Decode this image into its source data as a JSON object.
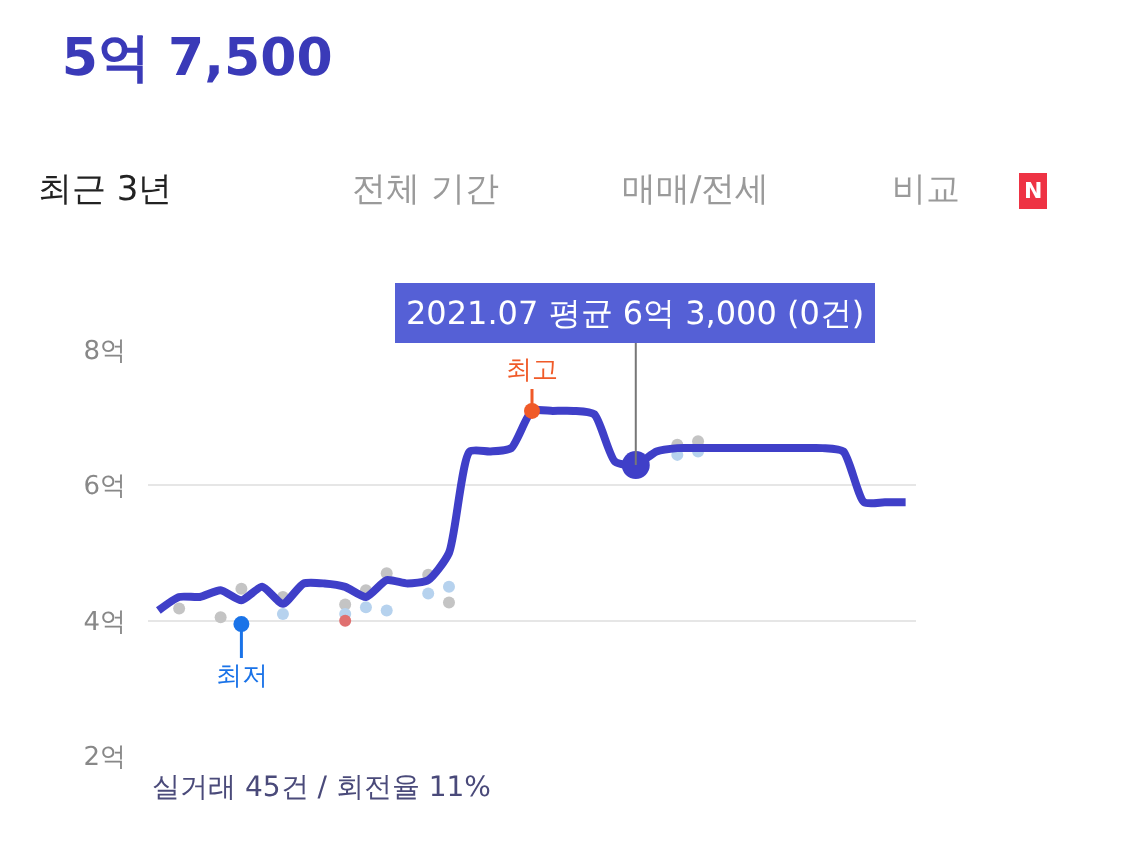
{
  "chart_data": {
    "type": "line",
    "title": "5억 7,500",
    "annotations": [
      "최근 3년",
      "전체 기간",
      "매매/전세",
      "비교",
      "N",
      "실거래 45건 / 회전율 11%"
    ],
    "categories": [
      null,
      null,
      null,
      null,
      null,
      null,
      null,
      null,
      null,
      null,
      null,
      null,
      null,
      null,
      null,
      null,
      null,
      null,
      null,
      null,
      null,
      null,
      null,
      null,
      null,
      null,
      null,
      null,
      null,
      null,
      null,
      null,
      null,
      null,
      null,
      null,
      null
    ],
    "series": [
      {
        "type": "scatter",
        "color": "#c4c4c4",
        "values": [
          null,
          4.18,
          null,
          4.05,
          4.47,
          null,
          4.35,
          null,
          null,
          4.24,
          4.45,
          4.7,
          null,
          4.68,
          4.27,
          null,
          null,
          null,
          null,
          null,
          null,
          null,
          null,
          null,
          null,
          6.6,
          6.65,
          null,
          null,
          null,
          null,
          null,
          null,
          null,
          null,
          null,
          null
        ]
      },
      {
        "type": "scatter",
        "color": "#b6d2ee",
        "values": [
          null,
          null,
          null,
          null,
          null,
          null,
          4.1,
          null,
          null,
          4.1,
          4.2,
          4.15,
          null,
          4.4,
          4.5,
          null,
          null,
          null,
          null,
          null,
          null,
          null,
          null,
          null,
          null,
          6.45,
          6.5,
          null,
          null,
          null,
          null,
          null,
          null,
          null,
          null,
          null,
          null
        ]
      },
      {
        "type": "scatter",
        "color": "#e07070",
        "values": [
          null,
          null,
          null,
          null,
          null,
          null,
          null,
          null,
          null,
          4.0,
          null,
          null,
          null,
          null,
          null,
          null,
          null,
          null,
          null,
          null,
          null,
          null,
          null,
          null,
          null,
          null,
          null,
          null,
          null,
          null,
          null,
          null,
          null,
          null,
          null,
          null,
          null
        ]
      },
      {
        "color": "#3f3fc8",
        "values": [
          4.15,
          4.35,
          4.35,
          4.45,
          4.3,
          4.5,
          4.25,
          4.55,
          4.55,
          4.5,
          4.35,
          4.6,
          4.55,
          4.6,
          5.0,
          6.5,
          6.5,
          6.55,
          7.1,
          7.1,
          7.1,
          7.05,
          6.35,
          6.3,
          6.5,
          6.55,
          6.55,
          6.55,
          6.55,
          6.55,
          6.55,
          6.55,
          6.55,
          6.5,
          5.75,
          5.75,
          5.75
        ]
      },
      {
        "type": "scatter",
        "name": "최저",
        "color": "#1a73e8",
        "values": [
          null,
          null,
          null,
          null,
          3.95,
          null,
          null,
          null,
          null,
          null,
          null,
          null,
          null,
          null,
          null,
          null,
          null,
          null,
          null,
          null,
          null,
          null,
          null,
          null,
          null,
          null,
          null,
          null,
          null,
          null,
          null,
          null,
          null,
          null,
          null,
          null,
          null
        ]
      },
      {
        "type": "scatter",
        "name": "최고",
        "color": "#f05a28",
        "values": [
          null,
          null,
          null,
          null,
          null,
          null,
          null,
          null,
          null,
          null,
          null,
          null,
          null,
          null,
          null,
          null,
          null,
          null,
          7.1,
          null,
          null,
          null,
          null,
          null,
          null,
          null,
          null,
          null,
          null,
          null,
          null,
          null,
          null,
          null,
          null,
          null,
          null
        ]
      },
      {
        "type": "scatter",
        "name": "2021.07 평균 6억 3,000 (0건)",
        "color": "#3f3fc8",
        "values": [
          null,
          null,
          null,
          null,
          null,
          null,
          null,
          null,
          null,
          null,
          null,
          null,
          null,
          null,
          null,
          null,
          null,
          null,
          null,
          null,
          null,
          null,
          null,
          6.3,
          null,
          null,
          null,
          null,
          null,
          null,
          null,
          null,
          null,
          null,
          null,
          null,
          null
        ]
      }
    ],
    "ylim": [
      2,
      8
    ],
    "yticks": [
      {
        "value": 2,
        "label": "2억"
      },
      {
        "value": 4,
        "label": "4억"
      },
      {
        "value": 6,
        "label": "6억"
      },
      {
        "value": 8,
        "label": "8억"
      }
    ],
    "grid": "y",
    "tick_labels": "y"
  }
}
